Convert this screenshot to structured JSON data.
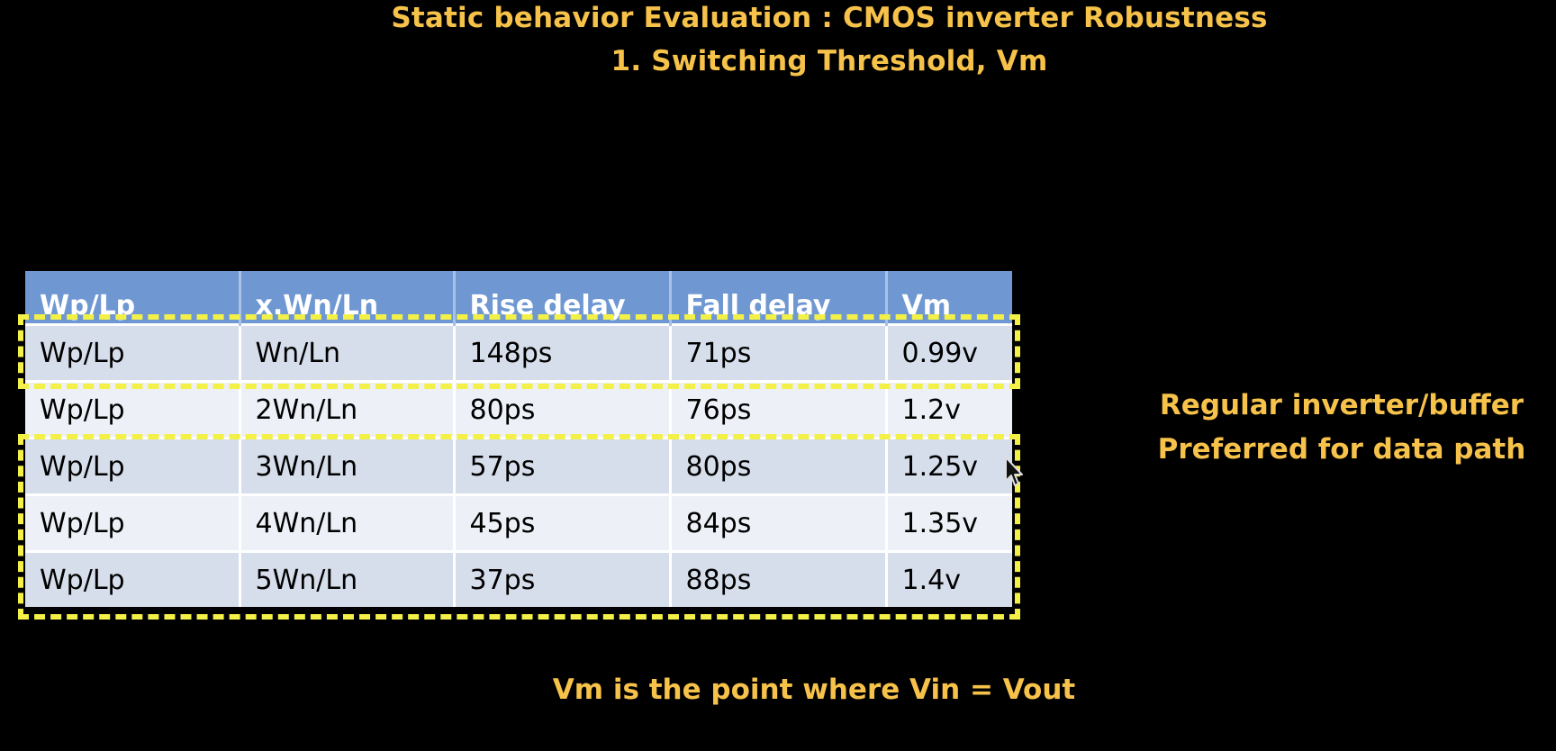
{
  "slide": {
    "title_line1": "Static behavior Evaluation : CMOS inverter Robustness",
    "title_line2": "1. Switching Threshold, Vm"
  },
  "table": {
    "headers": [
      "Wp/Lp",
      "x.Wn/Ln",
      "Rise delay",
      "Fall delay",
      "Vm"
    ],
    "rows": [
      [
        "Wp/Lp",
        "Wn/Ln",
        "148ps",
        "71ps",
        "0.99v"
      ],
      [
        "Wp/Lp",
        "2Wn/Ln",
        "80ps",
        "76ps",
        "1.2v"
      ],
      [
        "Wp/Lp",
        "3Wn/Ln",
        "57ps",
        "80ps",
        "1.25v"
      ],
      [
        "Wp/Lp",
        "4Wn/Ln",
        "45ps",
        "84ps",
        "1.35v"
      ],
      [
        "Wp/Lp",
        "5Wn/Ln",
        "37ps",
        "88ps",
        "1.4v"
      ]
    ]
  },
  "side_note": {
    "line1": "Regular inverter/buffer",
    "line2": "Preferred for data path"
  },
  "footer_note": "Vm is the point where Vin = Vout",
  "colors": {
    "text_accent": "#f6c24a",
    "header_bg": "#6f98d3",
    "row_odd_bg": "#d6deeb",
    "row_even_bg": "#edf0f6",
    "highlight_dash": "#f3f047",
    "background": "#000000"
  },
  "icons": {
    "cursor": "mouse-pointer-icon"
  }
}
